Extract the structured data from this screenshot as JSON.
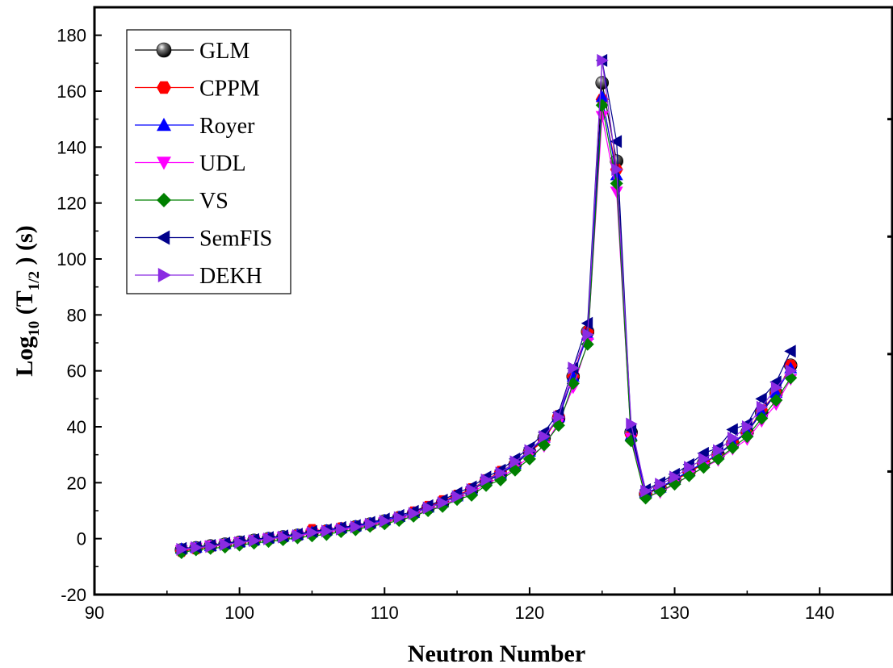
{
  "chart_data": {
    "type": "line",
    "xlabel": "Neutron Number",
    "ylabel": {
      "main": "Log",
      "sub": "10",
      "paren_open": "(T",
      "tsub": "1/2",
      "paren_close": ")",
      "unit": "(s)"
    },
    "xlim": [
      90,
      145
    ],
    "ylim": [
      -20,
      190
    ],
    "xticks": [
      "90",
      "100",
      "110",
      "120",
      "130",
      "140"
    ],
    "yticks": [
      "-20",
      "0",
      "20",
      "40",
      "60",
      "80",
      "100",
      "120",
      "140",
      "160",
      "180"
    ],
    "legend_position": "top-left",
    "x": [
      96,
      97,
      98,
      99,
      100,
      101,
      102,
      103,
      104,
      105,
      106,
      107,
      108,
      109,
      110,
      111,
      112,
      113,
      114,
      115,
      116,
      117,
      118,
      119,
      120,
      121,
      122,
      123,
      124,
      125,
      126,
      127,
      128,
      129,
      130,
      131,
      132,
      133,
      134,
      135,
      136,
      137,
      138
    ],
    "series": [
      {
        "name": "GLM",
        "color": "#000000",
        "marker": "sphere",
        "values": [
          -4,
          -3.3,
          -2.6,
          -2,
          -1.3,
          -0.6,
          0,
          0.6,
          1.2,
          2.2,
          2.7,
          3.5,
          4.2,
          5.2,
          6.3,
          7.5,
          9,
          11,
          12.8,
          15,
          17.3,
          20.5,
          23,
          26.5,
          31,
          36,
          43,
          58,
          74,
          163,
          135,
          38,
          16,
          18,
          21,
          24,
          27,
          30,
          34,
          38,
          45,
          52,
          62
        ]
      },
      {
        "name": "CPPM",
        "color": "#ff0000",
        "marker": "hexagon",
        "values": [
          -4.5,
          -3.6,
          -2.9,
          -2.2,
          -1.5,
          -0.8,
          -0.1,
          0.5,
          1.1,
          3.2,
          2.8,
          3.8,
          4.2,
          5,
          6,
          7.6,
          9.5,
          11.5,
          13.5,
          15.5,
          17.8,
          21,
          24,
          27,
          31,
          35,
          44,
          58,
          74,
          157,
          132,
          37,
          16,
          18.5,
          21,
          23.5,
          27,
          30,
          34.5,
          38,
          46,
          52,
          62
        ]
      },
      {
        "name": "Royer",
        "color": "#0000ff",
        "marker": "triangle-up",
        "values": [
          -3.6,
          -3.1,
          -2.6,
          -1.9,
          -1.2,
          -0.5,
          0.2,
          0.8,
          1.4,
          2.4,
          3,
          3.8,
          4.5,
          5.5,
          6.6,
          7.8,
          9.3,
          11.2,
          13,
          15.2,
          17.5,
          20.8,
          23.2,
          26.8,
          31.2,
          36.2,
          43.5,
          58,
          73,
          158,
          130,
          37,
          16.5,
          18.3,
          21.2,
          24.2,
          27.2,
          30.2,
          34.2,
          38.2,
          45.2,
          52.2,
          61
        ]
      },
      {
        "name": "UDL",
        "color": "#ff00ff",
        "marker": "triangle-down",
        "values": [
          -4.2,
          -3.3,
          -2.6,
          -2.1,
          -1.4,
          -0.7,
          -0.1,
          0.5,
          1,
          1.8,
          2.3,
          3,
          3.8,
          4.8,
          5.8,
          7,
          8.4,
          10.2,
          12,
          14.3,
          16.5,
          19.5,
          22,
          25,
          29.5,
          33,
          41.5,
          54,
          70,
          151,
          124,
          36,
          15,
          16.5,
          19.5,
          22.5,
          25.5,
          28,
          32,
          35.5,
          42,
          48,
          57
        ]
      },
      {
        "name": "VS",
        "color": "#008000",
        "marker": "diamond",
        "values": [
          -5,
          -4,
          -3.5,
          -3,
          -2.3,
          -1.6,
          -1,
          -0.4,
          0.3,
          1,
          1.5,
          2.5,
          3.2,
          4.4,
          5.3,
          6.5,
          8,
          10,
          11.5,
          14,
          15.5,
          19,
          21,
          24.5,
          28.5,
          33.5,
          40.5,
          55.5,
          69.5,
          155,
          127,
          35,
          14.5,
          17,
          19.5,
          22.5,
          25.5,
          28.5,
          32.5,
          36.5,
          43,
          49.5,
          57.5
        ]
      },
      {
        "name": "SemFIS",
        "color": "#00008b",
        "marker": "triangle-left",
        "values": [
          -3.5,
          -3,
          -2.4,
          -1.6,
          -1,
          -0.3,
          0.4,
          1,
          1.6,
          2.6,
          3.2,
          4,
          4.7,
          5.8,
          7,
          8.3,
          9.8,
          11.8,
          13.8,
          16.3,
          18.5,
          22,
          24.5,
          28.5,
          32.5,
          38,
          45,
          61,
          77,
          171,
          142,
          39,
          17.5,
          20,
          23,
          26.5,
          30.5,
          32.5,
          39,
          41,
          50,
          56,
          67
        ]
      },
      {
        "name": "DEKH",
        "color": "#8a2be2",
        "marker": "triangle-right",
        "values": [
          -3.8,
          -3.2,
          -2.8,
          -2.1,
          -1.4,
          -0.7,
          -0.1,
          0.6,
          1.1,
          2.2,
          2.7,
          3.4,
          4.2,
          5.2,
          6.3,
          7.5,
          9,
          11,
          12.8,
          15,
          17.5,
          21,
          23.5,
          27.5,
          31.5,
          36.5,
          43.5,
          61,
          73,
          171,
          132,
          41,
          17,
          19.5,
          22,
          25.5,
          28.5,
          31.5,
          36,
          40,
          47,
          54,
          60
        ]
      }
    ]
  }
}
